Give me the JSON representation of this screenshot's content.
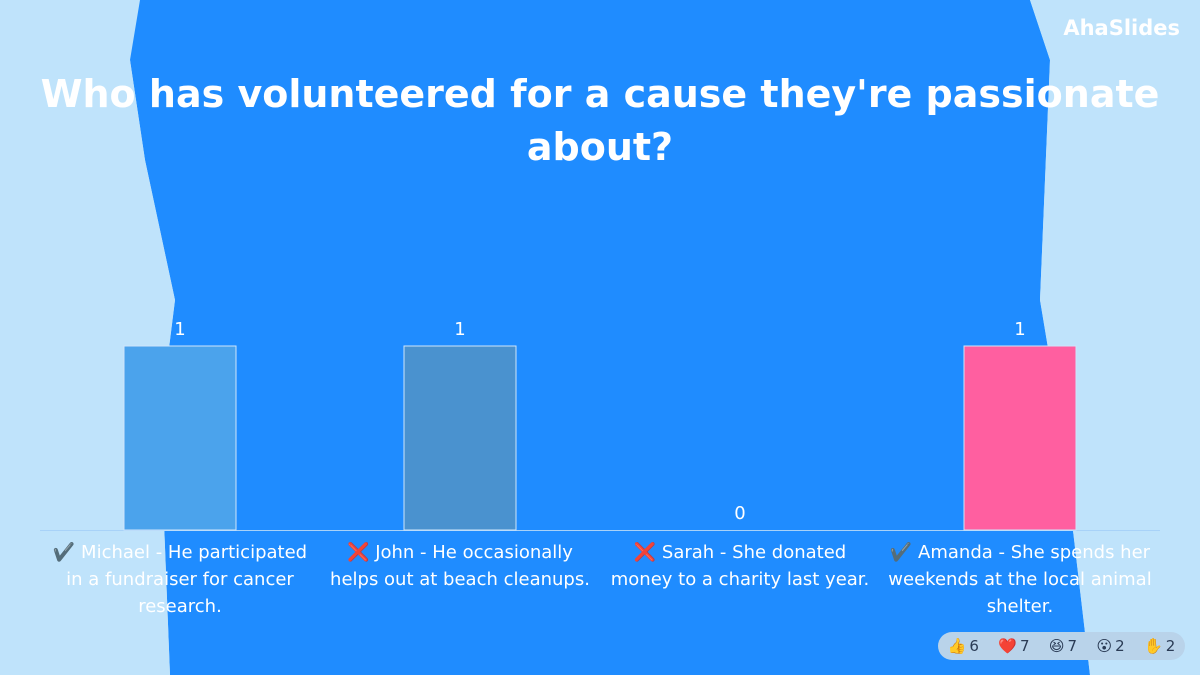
{
  "brand": "AhaSlides",
  "reactions": [
    6,
    7,
    7,
    2,
    2
  ],
  "chart_data": {
    "type": "bar",
    "title": "Who has volunteered for a cause they're passionate about?",
    "categories": [
      "✔️ Michael - He participated in a fundraiser for cancer research.",
      "❌ John - He occasionally helps out at beach cleanups.",
      "❌ Sarah - She donated money to a charity last year.",
      "✔️ Amanda - She spends her weekends at the local animal shelter."
    ],
    "values": [
      1,
      1,
      0,
      1
    ],
    "colors": [
      "#4ba3ec",
      "#4a92cf",
      "#3f8de0",
      "#ff5fa0"
    ]
  }
}
